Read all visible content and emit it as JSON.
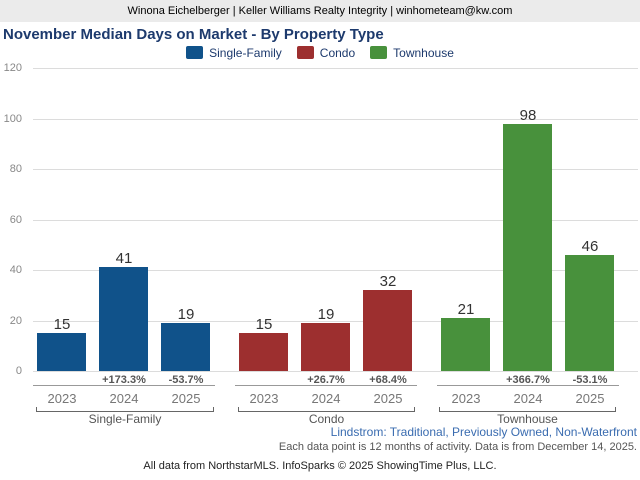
{
  "header": {
    "text": "Winona Eichelberger | Keller Williams Realty Integrity | winhometeam@kw.com"
  },
  "title": "November Median Days on Market - By Property Type",
  "legend": [
    {
      "label": "Single-Family",
      "color": "#10528a"
    },
    {
      "label": "Condo",
      "color": "#9d2f2f"
    },
    {
      "label": "Townhouse",
      "color": "#48913c"
    }
  ],
  "chart_data": {
    "type": "bar",
    "title": "November Median Days on Market - By Property Type",
    "ylim": [
      0,
      120
    ],
    "yticks": [
      0,
      20,
      40,
      60,
      80,
      100,
      120
    ],
    "grid": true,
    "legend_position": "top-center",
    "categories": [
      "2023",
      "2024",
      "2025"
    ],
    "groups": [
      {
        "name": "Single-Family",
        "color": "#10528a",
        "years": [
          "2023",
          "2024",
          "2025"
        ],
        "values": [
          15,
          41,
          19
        ],
        "pct_change": [
          "",
          "+173.3%",
          "-53.7%"
        ]
      },
      {
        "name": "Condo",
        "color": "#9d2f2f",
        "years": [
          "2023",
          "2024",
          "2025"
        ],
        "values": [
          15,
          19,
          32
        ],
        "pct_change": [
          "",
          "+26.7%",
          "+68.4%"
        ]
      },
      {
        "name": "Townhouse",
        "color": "#48913c",
        "years": [
          "2023",
          "2024",
          "2025"
        ],
        "values": [
          21,
          98,
          46
        ],
        "pct_change": [
          "",
          "+366.7%",
          "-53.1%"
        ]
      }
    ]
  },
  "footer": {
    "filter_line": "Lindstrom: Traditional, Previously Owned, Non-Waterfront",
    "data_note": "Each data point is 12 months of activity. Data is from December 14, 2025.",
    "attribution": "All data from NorthstarMLS. InfoSparks © 2025 ShowingTime Plus, LLC."
  }
}
